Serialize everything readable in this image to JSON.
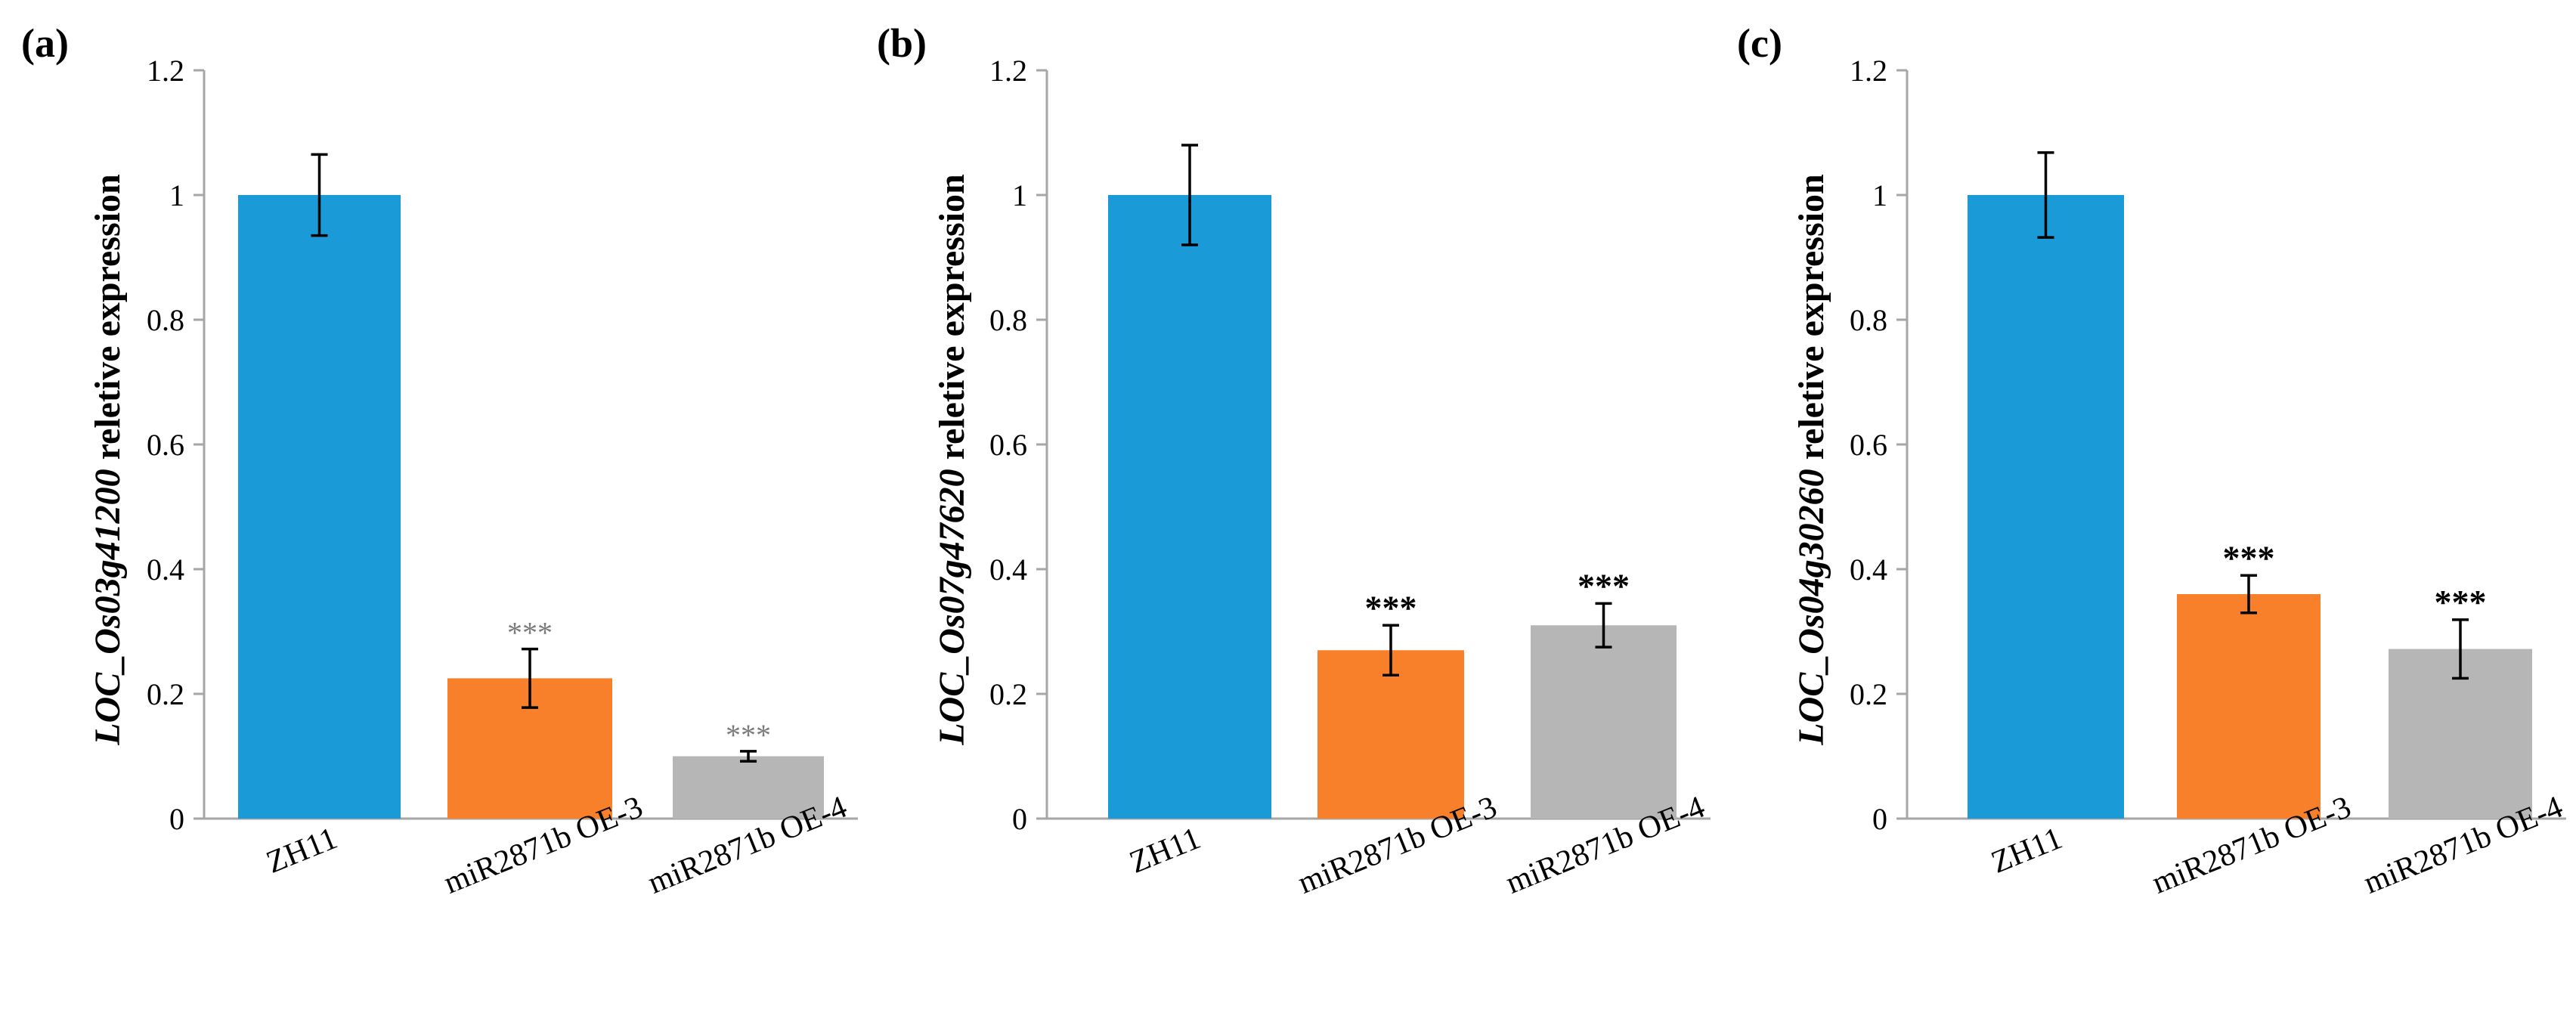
{
  "colors": {
    "ZH11": "#1a9bd7",
    "OE3": "#f9802a",
    "OE4": "#b6b6b6",
    "axis": "#a6a6a6",
    "errorbar": "#000000"
  },
  "chart_data": [
    {
      "type": "bar",
      "panel": "(a)",
      "gene": "LOC_Os03g41200",
      "ylabel_suffix": " reletive expression",
      "categories": [
        "ZH11",
        "miR2871b OE-3",
        "miR2871b OE-4"
      ],
      "values": [
        1.0,
        0.225,
        0.1
      ],
      "errors": [
        0.065,
        0.047,
        0.008
      ],
      "significance": [
        "",
        "***",
        "***"
      ],
      "significance_style": "light",
      "ylim": [
        0,
        1.2
      ],
      "yticks": [
        "0",
        "0.2",
        "0.4",
        "0.6",
        "0.8",
        "1",
        "1.2"
      ],
      "ytick_values": [
        0,
        0.2,
        0.4,
        0.6,
        0.8,
        1.0,
        1.2
      ]
    },
    {
      "type": "bar",
      "panel": "(b)",
      "gene": "LOC_Os07g47620",
      "ylabel_suffix": " reletive expression",
      "categories": [
        "ZH11",
        "miR2871b OE-3",
        "miR2871b OE-4"
      ],
      "values": [
        1.0,
        0.27,
        0.31
      ],
      "errors": [
        0.08,
        0.04,
        0.035
      ],
      "significance": [
        "",
        "***",
        "***"
      ],
      "significance_style": "bold",
      "ylim": [
        0,
        1.2
      ],
      "yticks": [
        "0",
        "0.2",
        "0.4",
        "0.6",
        "0.8",
        "1",
        "1.2"
      ],
      "ytick_values": [
        0,
        0.2,
        0.4,
        0.6,
        0.8,
        1.0,
        1.2
      ]
    },
    {
      "type": "bar",
      "panel": "(c)",
      "gene": "LOC_Os04g30260",
      "ylabel_suffix": " reletive expression",
      "categories": [
        "ZH11",
        "miR2871b OE-3",
        "miR2871b OE-4"
      ],
      "values": [
        1.0,
        0.36,
        0.272
      ],
      "errors": [
        0.068,
        0.03,
        0.047
      ],
      "significance": [
        "",
        "***",
        "***"
      ],
      "significance_style": "bold",
      "ylim": [
        0,
        1.2
      ],
      "yticks": [
        "0",
        "0.2",
        "0.4",
        "0.6",
        "0.8",
        "1",
        "1.2"
      ],
      "ytick_values": [
        0,
        0.2,
        0.4,
        0.6,
        0.8,
        1.0,
        1.2
      ]
    }
  ]
}
